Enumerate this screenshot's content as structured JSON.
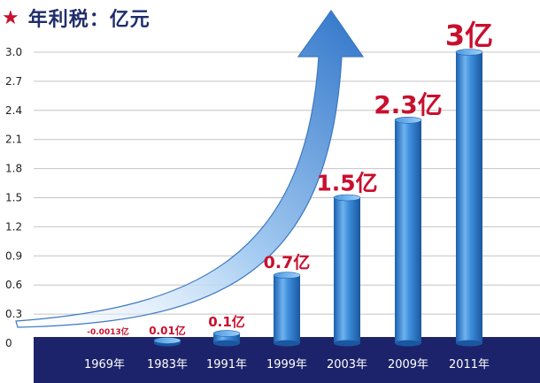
{
  "title": "年利税：亿元",
  "colors": {
    "band": "#1c236a",
    "grid": "#c4c4c4",
    "label": "#c8102e",
    "title": "#1f2d6b",
    "star": "#c8102e"
  },
  "chart_data": {
    "type": "bar",
    "title": "年利税：亿元",
    "xlabel": "",
    "ylabel": "",
    "ylim": [
      0,
      3.0
    ],
    "yticks": [
      "0",
      "0.3",
      "0.6",
      "0.9",
      "1.2",
      "1.5",
      "1.8",
      "2.1",
      "2.4",
      "2.7",
      "3.0"
    ],
    "grid": true,
    "categories": [
      "1969年",
      "1983年",
      "1991年",
      "1999年",
      "2003年",
      "2009年",
      "2011年"
    ],
    "values": [
      -0.0013,
      0.01,
      0.1,
      0.7,
      1.5,
      2.3,
      3
    ],
    "value_labels": [
      "-0.0013亿",
      "0.01亿",
      "0.1亿",
      "0.7亿",
      "1.5亿",
      "2.3亿",
      "3亿"
    ],
    "annotations": [
      "upward-arrow"
    ]
  }
}
